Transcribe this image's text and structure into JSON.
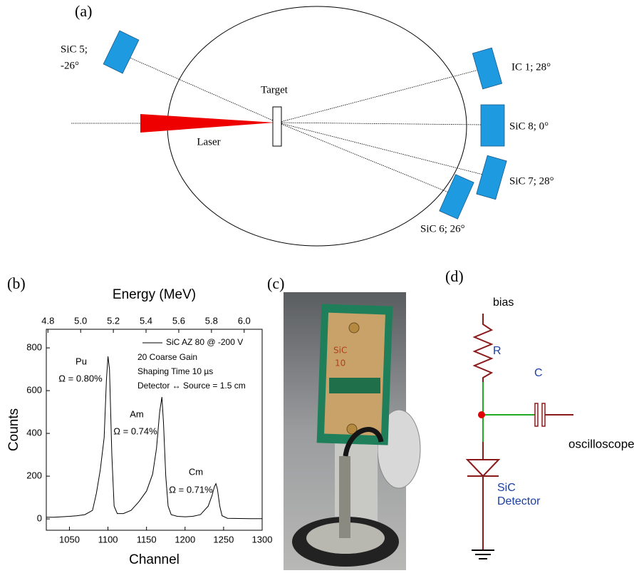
{
  "panel_a": {
    "label": "(a)",
    "target": "Target",
    "laser": "Laser",
    "detectors": [
      "SiC 5;",
      "-26°",
      "IC 1; 28°",
      "SiC 8; 0°",
      "SiC 7; 28°",
      "SiC 6; 26°"
    ]
  },
  "chart_data": {
    "type": "line",
    "panel_label": "(b)",
    "xlabel": "Channel",
    "ylabel": "Counts",
    "x2label": "Energy (MeV)",
    "x": [
      1020,
      1030,
      1040,
      1050,
      1060,
      1070,
      1080,
      1085,
      1090,
      1095,
      1098,
      1100,
      1102,
      1105,
      1108,
      1112,
      1120,
      1130,
      1140,
      1150,
      1158,
      1163,
      1167,
      1170,
      1172,
      1175,
      1178,
      1182,
      1190,
      1200,
      1210,
      1220,
      1230,
      1235,
      1238,
      1240,
      1242,
      1245,
      1248,
      1255,
      1270,
      1285,
      1300
    ],
    "series": [
      {
        "name": "SiC AZ 80 @ -200 V",
        "color": "#000000",
        "values": [
          8,
          8,
          10,
          12,
          15,
          20,
          40,
          120,
          230,
          380,
          650,
          760,
          700,
          300,
          60,
          25,
          25,
          40,
          80,
          130,
          210,
          330,
          500,
          570,
          450,
          200,
          60,
          20,
          12,
          10,
          12,
          20,
          60,
          110,
          150,
          165,
          140,
          60,
          15,
          3,
          2,
          1,
          1
        ]
      }
    ],
    "xlim": [
      1020,
      1300
    ],
    "xticks": [
      1050,
      1100,
      1150,
      1200,
      1250,
      1300
    ],
    "ylim": [
      -53,
      887
    ],
    "yticks": [
      0,
      200,
      400,
      600,
      800
    ],
    "x2lim": [
      4.79,
      6.11
    ],
    "x2ticks": [
      4.8,
      {
        "value": 5,
        "label": "5.0"
      },
      5.2,
      5.4,
      5.6,
      5.8,
      {
        "value": 6,
        "label": "6.0"
      }
    ],
    "annotations": [
      "Pu",
      "Ω = 0.80%",
      "Am",
      "Ω = 0.74%",
      "Cm",
      "Ω = 0.71%"
    ],
    "notes": [
      "20 Coarse Gain",
      "Shaping Time 10 µs",
      "Detector ↔ Source = 1.5 cm"
    ]
  },
  "panel_c": {
    "label": "(c)",
    "board_text": [
      "SiC",
      "10"
    ]
  },
  "panel_d": {
    "label": "(d)",
    "bias": "bias",
    "r": "R",
    "c": "C",
    "out": "oscilloscope",
    "diode": [
      "SiC",
      "Detector"
    ]
  }
}
